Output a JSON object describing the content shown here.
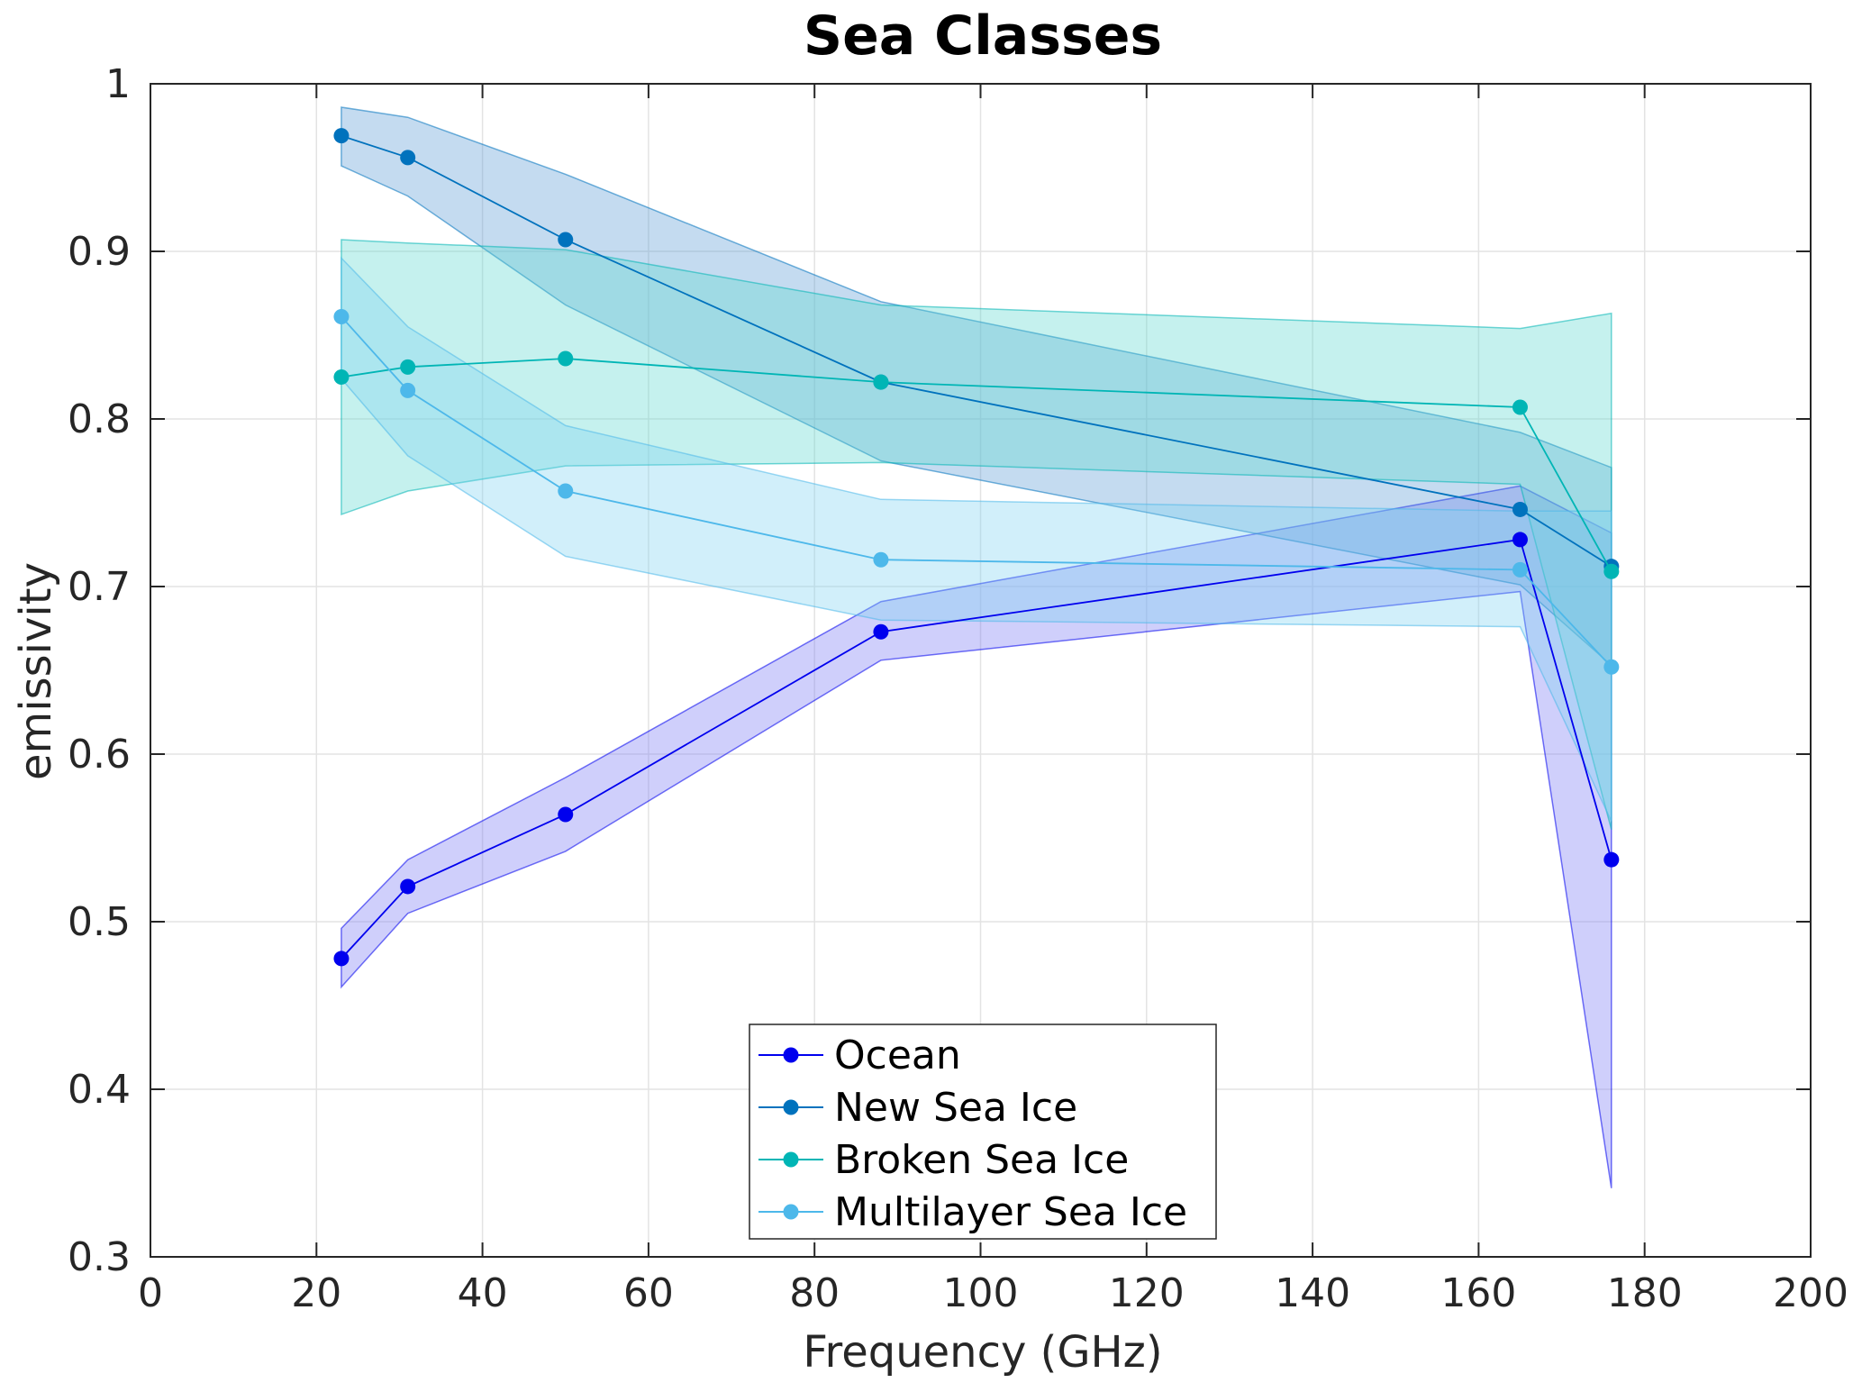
{
  "chart_data": {
    "type": "line",
    "title": "Sea Classes",
    "xlabel": "Frequency (GHz)",
    "ylabel": "emissivity",
    "xlim": [
      0,
      200
    ],
    "ylim": [
      0.3,
      1
    ],
    "xticks": [
      0,
      20,
      40,
      60,
      80,
      100,
      120,
      140,
      160,
      180,
      200
    ],
    "xtick_labels": [
      "0",
      "20",
      "40",
      "60",
      "80",
      "100",
      "120",
      "140",
      "160",
      "180",
      "200"
    ],
    "yticks": [
      0.3,
      0.4,
      0.5,
      0.6,
      0.7,
      0.8,
      0.9,
      1
    ],
    "ytick_labels": [
      "0.3",
      "0.4",
      "0.5",
      "0.6",
      "0.7",
      "0.8",
      "0.9",
      "1"
    ],
    "grid": true,
    "legend_position": "bottom-center",
    "x": [
      23,
      31,
      50,
      88,
      165,
      176
    ],
    "series": [
      {
        "name": "Ocean",
        "color": "#0000ee",
        "fill": "#7b7bf5",
        "values": [
          0.478,
          0.521,
          0.564,
          0.673,
          0.728,
          0.537
        ],
        "upper": [
          0.496,
          0.537,
          0.586,
          0.691,
          0.76,
          0.732
        ],
        "lower": [
          0.461,
          0.505,
          0.542,
          0.656,
          0.697,
          0.341
        ]
      },
      {
        "name": "New Sea Ice",
        "color": "#0072bd",
        "fill": "#5c9bd6",
        "values": [
          0.969,
          0.956,
          0.907,
          0.822,
          0.746,
          0.712
        ],
        "upper": [
          0.986,
          0.98,
          0.946,
          0.87,
          0.792,
          0.771
        ],
        "lower": [
          0.951,
          0.933,
          0.868,
          0.775,
          0.701,
          0.653
        ]
      },
      {
        "name": "Broken Sea Ice",
        "color": "#00b5b5",
        "fill": "#5fd8d0",
        "values": [
          0.825,
          0.831,
          0.836,
          0.822,
          0.807,
          0.709
        ],
        "upper": [
          0.907,
          0.905,
          0.901,
          0.868,
          0.854,
          0.863
        ],
        "lower": [
          0.743,
          0.757,
          0.772,
          0.774,
          0.761,
          0.555
        ]
      },
      {
        "name": "Multilayer Sea Ice",
        "color": "#4db8ea",
        "fill": "#7fd2f0",
        "values": [
          0.861,
          0.817,
          0.757,
          0.716,
          0.71,
          0.652
        ],
        "upper": [
          0.896,
          0.855,
          0.796,
          0.752,
          0.745,
          0.745
        ],
        "lower": [
          0.824,
          0.778,
          0.718,
          0.68,
          0.676,
          0.56
        ]
      }
    ]
  }
}
